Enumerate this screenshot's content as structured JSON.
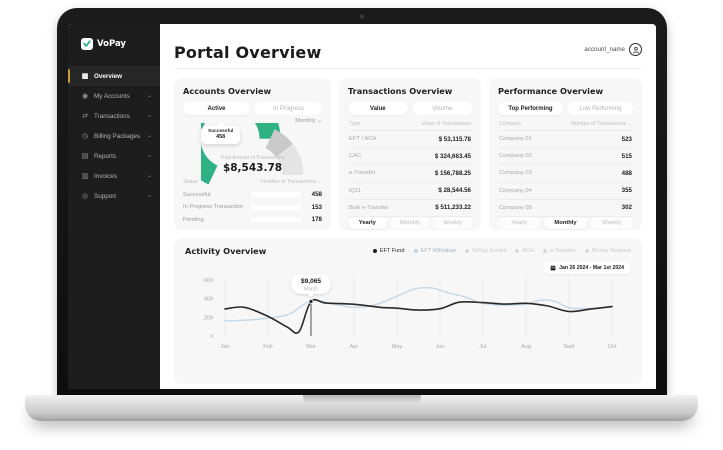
{
  "sidebar": {
    "logo_text": "VoPay",
    "items": [
      {
        "label": "Overview",
        "icon": "▦"
      },
      {
        "label": "My Accounts",
        "icon": "◉",
        "chevron": "⌄"
      },
      {
        "label": "Transactions",
        "icon": "⇄",
        "chevron": "⌄"
      },
      {
        "label": "Billing Packages",
        "icon": "◷",
        "chevron": "⌄"
      },
      {
        "label": "Reports",
        "icon": "▤",
        "chevron": "⌄"
      },
      {
        "label": "Invoices",
        "icon": "▥",
        "chevron": "⌄"
      },
      {
        "label": "Support",
        "icon": "◎",
        "chevron": "⌄"
      }
    ]
  },
  "header": {
    "title": "Portal Overview",
    "account_name": "account_name"
  },
  "accounts_overview": {
    "title": "Accounts Overview",
    "tab_active": "Active",
    "tab_inactive": "In Progress",
    "period": "Monthly ⌄",
    "gauge": {
      "segments": [
        {
          "label": "Successful",
          "pct": 64,
          "color": "#2eb183"
        },
        {
          "label": "In Progress",
          "pct": 15,
          "color": "#c9c9c9"
        },
        {
          "label": "Pending",
          "pct": 21,
          "color": "#e4e4e4"
        }
      ],
      "tooltip_label": "Successful",
      "tooltip_value": "458",
      "center_label": "Total Amount of Transactions",
      "center_value": "$8,543.78"
    },
    "columns": {
      "status": "Status",
      "transactions": "Number of Transactions ⌄"
    },
    "rows": [
      {
        "label": "Successful",
        "value": "458",
        "pct": 70,
        "color": "#2eb183"
      },
      {
        "label": "In Progress Transaction",
        "value": "153",
        "pct": 28,
        "color": "#dcdcdc"
      },
      {
        "label": "Pending",
        "value": "178",
        "pct": 42,
        "color": "#dcdcdc"
      }
    ]
  },
  "transactions_overview": {
    "title": "Transactions Overview",
    "tab_value": "Value",
    "tab_volume": "Volume",
    "columns": {
      "type": "Type",
      "value": "Value of Transactions"
    },
    "rows": [
      {
        "type": "EFT / ACH",
        "value": "$ 53,115.78"
      },
      {
        "type": "CAC",
        "value": "$ 324,663.45"
      },
      {
        "type": "e-Transfer",
        "value": "$ 156,788.25"
      },
      {
        "type": "iQ11",
        "value": "$ 28,544.56"
      },
      {
        "type": "Bulk e-Transfer",
        "value": "$ 511,233.22"
      }
    ],
    "periods": [
      "Yearly",
      "Monthly",
      "Weekly"
    ],
    "selected_period": "Yearly"
  },
  "performance_overview": {
    "title": "Performance Overview",
    "tab_top": "Top Performing",
    "tab_low": "Low Performing",
    "columns": {
      "company": "Company",
      "transactions": "Number of Transactions ⌄"
    },
    "rows": [
      {
        "company": "Company 01",
        "value": "523"
      },
      {
        "company": "Company 02",
        "value": "515"
      },
      {
        "company": "Company 03",
        "value": "488"
      },
      {
        "company": "Company 04",
        "value": "355"
      },
      {
        "company": "Company 05",
        "value": "302"
      }
    ],
    "periods": [
      "Yearly",
      "Monthly",
      "Weekly"
    ],
    "selected_period": "Monthly"
  },
  "activity": {
    "title": "Activity Overview",
    "legend": [
      {
        "label": "EFT Fund",
        "dot": "#1f1f1f",
        "text": "#2b2b2b"
      },
      {
        "label": "EFT Withdraw",
        "dot": "#bcd4e6",
        "text": "#9fb4c4"
      },
      {
        "label": "VoPay Instant",
        "dot": "#d8d8d8",
        "text": "#c9c9c9"
      },
      {
        "label": "ACH",
        "dot": "#d8d8d8",
        "text": "#c9c9c9"
      },
      {
        "label": "e-Transfer",
        "dot": "#d8d8d8",
        "text": "#c9c9c9"
      },
      {
        "label": "Money Request",
        "dot": "#d8d8d8",
        "text": "#c9c9c9"
      }
    ],
    "date_range": "Jan 26 2024 - Mar 1st 2024"
  },
  "chart_data": {
    "type": "line",
    "title": "Activity Overview",
    "x": [
      "Jan",
      "Feb",
      "Mar",
      "Apr",
      "May",
      "Jun",
      "Jul",
      "Aug",
      "Sept",
      "Oct"
    ],
    "ylim": [
      0,
      600
    ],
    "y_ticks": [
      600,
      400,
      200,
      0
    ],
    "grid": "vertical",
    "legend_position": "top-right",
    "series": [
      {
        "name": "EFT Fund",
        "color": "#2a2a2a",
        "width": 1.6,
        "monthly_values": [
          290,
          205,
          370,
          340,
          300,
          290,
          360,
          350,
          265,
          315
        ],
        "points": [
          [
            0,
            290
          ],
          [
            0.45,
            308
          ],
          [
            1,
            210
          ],
          [
            1.45,
            95
          ],
          [
            1.72,
            45
          ],
          [
            2,
            370
          ],
          [
            2.35,
            352
          ],
          [
            3,
            340
          ],
          [
            3.6,
            308
          ],
          [
            4,
            298
          ],
          [
            4.5,
            278
          ],
          [
            5,
            292
          ],
          [
            5.45,
            362
          ],
          [
            6,
            358
          ],
          [
            6.5,
            342
          ],
          [
            7,
            350
          ],
          [
            7.5,
            322
          ],
          [
            8,
            263
          ],
          [
            8.5,
            288
          ],
          [
            9,
            315
          ]
        ]
      },
      {
        "name": "EFT Withdraw",
        "color": "#c3d8e9",
        "width": 1.4,
        "monthly_values": [
          160,
          190,
          380,
          310,
          430,
          460,
          350,
          340,
          300,
          310
        ],
        "points": [
          [
            0,
            162
          ],
          [
            0.5,
            170
          ],
          [
            1,
            192
          ],
          [
            1.5,
            235
          ],
          [
            2,
            380
          ],
          [
            2.5,
            345
          ],
          [
            3,
            308
          ],
          [
            3.5,
            335
          ],
          [
            4,
            425
          ],
          [
            4.4,
            505
          ],
          [
            4.8,
            515
          ],
          [
            5.2,
            462
          ],
          [
            5.6,
            415
          ],
          [
            6,
            348
          ],
          [
            6.5,
            330
          ],
          [
            7,
            342
          ],
          [
            7.35,
            385
          ],
          [
            7.7,
            368
          ],
          [
            8,
            302
          ],
          [
            8.5,
            296
          ],
          [
            9,
            312
          ]
        ]
      }
    ],
    "tooltip": {
      "month_index": 2,
      "month": "March",
      "amount": "$9,065",
      "value": 370
    }
  }
}
